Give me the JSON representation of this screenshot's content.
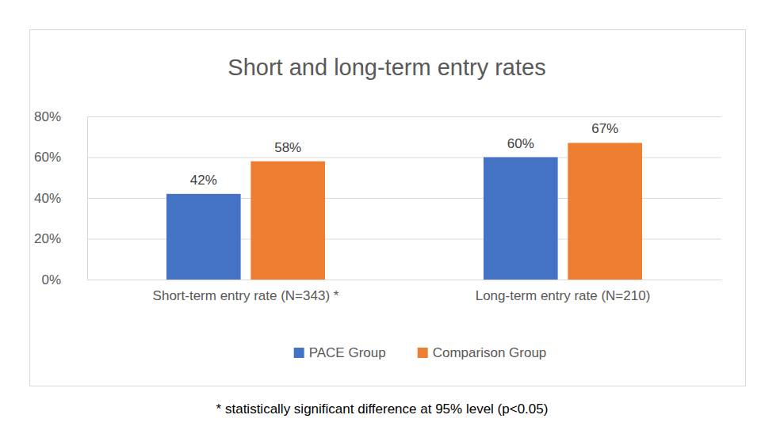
{
  "chart_data": {
    "type": "bar",
    "title": "Short and long-term entry rates",
    "categories": [
      "Short-term entry rate (N=343) *",
      "Long-term entry rate (N=210)"
    ],
    "series": [
      {
        "name": "PACE Group",
        "color": "#4472c4",
        "values": [
          42,
          60
        ],
        "value_labels": [
          "42%",
          "60%"
        ]
      },
      {
        "name": "Comparison Group",
        "color": "#ed7d31",
        "values": [
          58,
          67
        ],
        "value_labels": [
          "58%",
          "67%"
        ]
      }
    ],
    "ylim": [
      0,
      80
    ],
    "yticks": [
      {
        "value": 0,
        "label": "0%"
      },
      {
        "value": 20,
        "label": "20%"
      },
      {
        "value": 40,
        "label": "40%"
      },
      {
        "value": 60,
        "label": "60%"
      },
      {
        "value": 80,
        "label": "80%"
      }
    ],
    "grid": true,
    "legend": "bottom",
    "data_labels": true,
    "annotations": [
      "* statistically significant difference at 95% level (p<0.05)"
    ]
  }
}
